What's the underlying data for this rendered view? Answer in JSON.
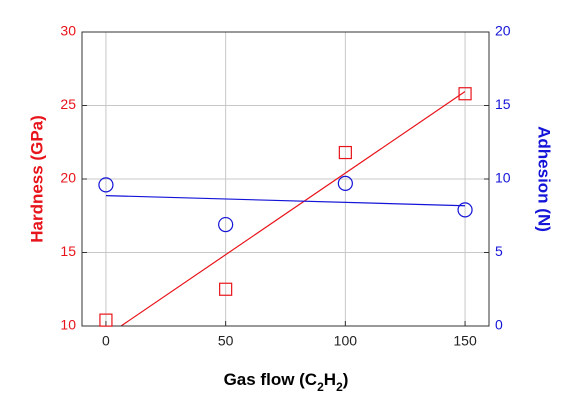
{
  "chart_data": {
    "type": "scatter",
    "x_label_parts": [
      "Gas flow (C",
      "2",
      "H",
      "2",
      ")"
    ],
    "y_label": "Hardness (GPa)",
    "y2_label": "Adhesion (N)",
    "y_color": "#e8141b",
    "y2_color": "#1414d8",
    "xlim": [
      -10,
      160
    ],
    "xticks": [
      0,
      50,
      100,
      150
    ],
    "ylim": [
      10,
      30
    ],
    "yticks": [
      10,
      15,
      20,
      25,
      30
    ],
    "y2lim": [
      0,
      20
    ],
    "y2ticks": [
      0,
      5,
      10,
      15,
      20
    ],
    "grid": true,
    "series": [
      {
        "color": "#e8141b",
        "marker": "square",
        "axis": "y",
        "x": [
          0,
          50,
          100,
          150
        ],
        "values": [
          10.4,
          12.5,
          21.8,
          25.8
        ]
      },
      {
        "color": "#1414d8",
        "marker": "circle",
        "axis": "y2",
        "x": [
          0,
          50,
          100,
          150
        ],
        "values": [
          9.6,
          6.9,
          9.7,
          7.9
        ]
      }
    ],
    "fit_lines": [
      {
        "color": "#e8141b",
        "axis": "y",
        "x": [
          0,
          150
        ],
        "values": [
          9.3,
          25.95
        ]
      },
      {
        "color": "#1414d8",
        "axis": "y2",
        "x": [
          0,
          150
        ],
        "values": [
          8.87,
          8.18
        ]
      }
    ]
  }
}
